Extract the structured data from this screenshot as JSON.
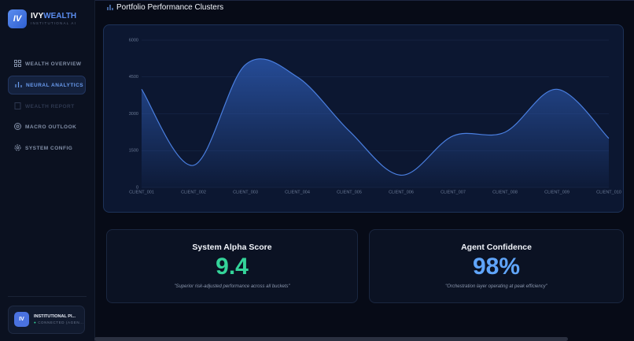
{
  "brand": {
    "logo": "IV",
    "name_part1": "IVY",
    "name_part2": "WEALTH",
    "tagline": "INSTITUTIONAL AI"
  },
  "nav": [
    "WEALTH OVERVIEW",
    "NEURAL ANALYTICS",
    "WEALTH REPORT",
    "MACRO OUTLOOK",
    "SYSTEM CONFIG"
  ],
  "status_card": {
    "logo": "IV",
    "title": "INSTITUTIONAL PI...",
    "status": "CONNECTED (AGEN..."
  },
  "panel_title": "Portfolio Performance Clusters",
  "chart": {
    "type": "area",
    "categories": [
      "CLIENT_001",
      "CLIENT_002",
      "CLIENT_003",
      "CLIENT_004",
      "CLIENT_005",
      "CLIENT_006",
      "CLIENT_007",
      "CLIENT_008",
      "CLIENT_009",
      "CLIENT_010"
    ],
    "values": [
      4000,
      900,
      5000,
      4500,
      2300,
      500,
      2100,
      2250,
      4000,
      2000
    ],
    "color": "#4a7fe0",
    "ylim": [
      0,
      6000
    ],
    "yticks": [
      0,
      1500,
      3000,
      4500,
      6000
    ],
    "grid": true
  },
  "metrics": [
    {
      "title": "System Alpha Score",
      "value": "9.4",
      "caption": "\"Superior risk-adjusted performance across all buckets\""
    },
    {
      "title": "Agent Confidence",
      "value": "98%",
      "caption": "\"Orchestration layer operating at peak efficiency\""
    }
  ]
}
